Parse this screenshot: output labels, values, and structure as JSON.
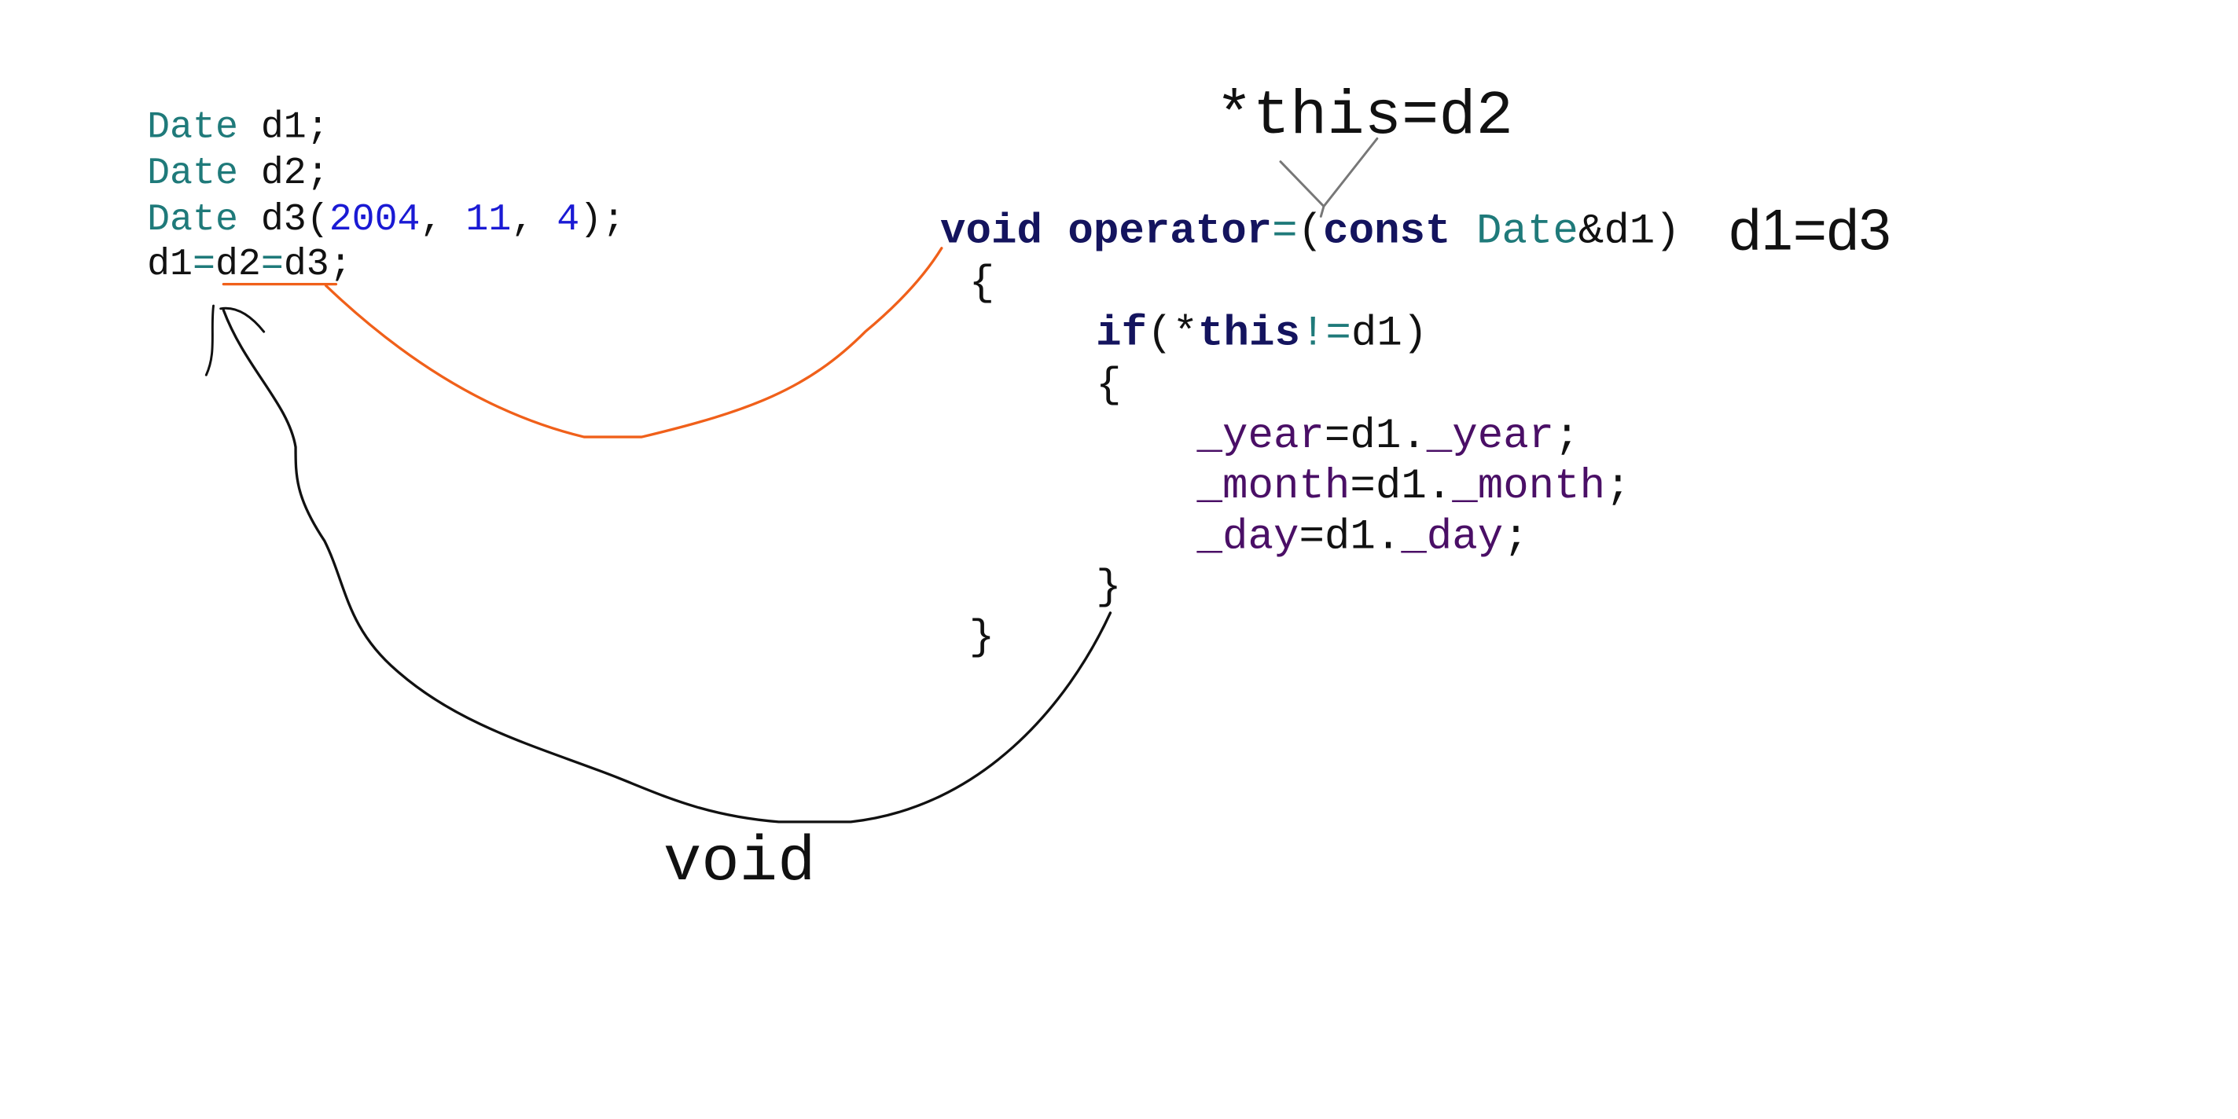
{
  "left_code": {
    "lines": [
      [
        "Date",
        " d1;"
      ],
      [
        "Date",
        " d2;"
      ],
      [
        "Date",
        " d3(",
        "2004",
        ", ",
        "11",
        ", ",
        "4",
        ");"
      ],
      [
        "d1",
        "=",
        "d2",
        "=",
        "d3;"
      ]
    ]
  },
  "right_code": {
    "lines": [
      [
        "void operator",
        "=",
        "(",
        "const",
        " Date",
        "&d1)"
      ],
      [
        "{"
      ],
      [
        "if",
        "(*",
        "this",
        "!=",
        "d1)"
      ],
      [
        "{"
      ],
      [
        "_year",
        "=d1.",
        "_year",
        ";"
      ],
      [
        "_month",
        "=d1.",
        "_month",
        ";"
      ],
      [
        "_day",
        "=d1.",
        "_day",
        ";"
      ],
      [
        "}"
      ],
      [
        "}"
      ]
    ]
  },
  "annotations": {
    "this_label": "*this=d2",
    "assign_label": "d1=d3",
    "return_label": "void"
  }
}
